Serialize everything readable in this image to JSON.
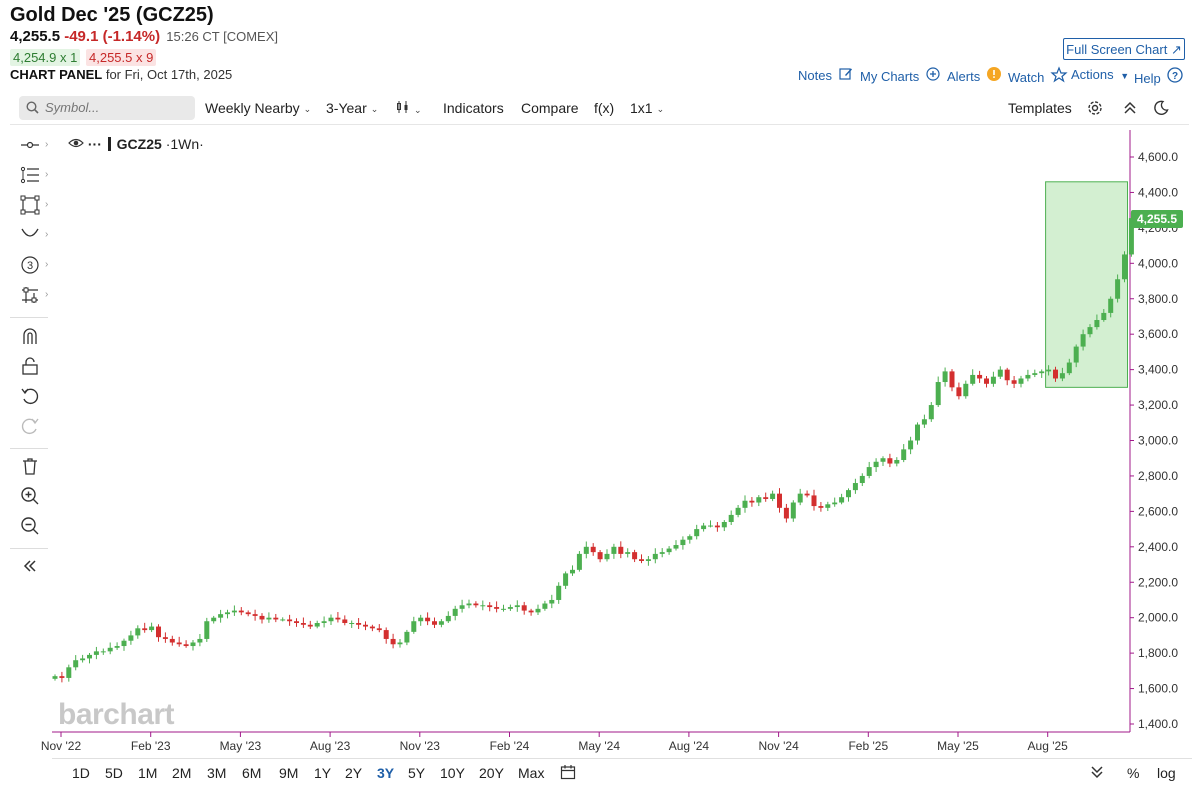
{
  "header": {
    "title": "Gold Dec '25 (GCZ25)",
    "last": "4,255.5",
    "change": "-49.1 (-1.14%)",
    "time": "15:26 CT [COMEX]",
    "bid": "4,254.9 x 1",
    "ask": "4,255.5 x 9",
    "panel_label": "CHART PANEL",
    "panel_date": "for Fri, Oct 17th, 2025",
    "fullscreen_label": "Full Screen Chart"
  },
  "top_links": {
    "notes": "Notes",
    "my_charts": "My Charts",
    "alerts": "Alerts",
    "watch": "Watch",
    "actions": "Actions",
    "help": "Help"
  },
  "toolbar": {
    "symbol_placeholder": "Symbol...",
    "interval": "Weekly Nearby",
    "period": "3-Year",
    "indicators": "Indicators",
    "compare": "Compare",
    "fx": "f(x)",
    "layout": "1x1",
    "templates": "Templates"
  },
  "legend": {
    "symbol": "GCZ25",
    "suffix": "·1Wn·"
  },
  "brand": "barchart",
  "timeframes": [
    "1D",
    "5D",
    "1M",
    "2M",
    "3M",
    "6M",
    "9M",
    "1Y",
    "2Y",
    "3Y",
    "5Y",
    "10Y",
    "20Y",
    "Max"
  ],
  "active_timeframe": "3Y",
  "bottom_right": {
    "percent": "%",
    "log": "log"
  },
  "colors": {
    "up": "#4caf50",
    "down": "#d32f2f",
    "accent": "#1f5fa8",
    "highlight": "#c8ebc5"
  },
  "chart_data": {
    "type": "candlestick",
    "interval": "weekly",
    "ylim": [
      1400,
      4700
    ],
    "y_ticks": [
      "4,600.0",
      "4,400.0",
      "4,200.0",
      "4,000.0",
      "3,800.0",
      "3,600.0",
      "3,400.0",
      "3,200.0",
      "3,000.0",
      "2,800.0",
      "2,600.0",
      "2,400.0",
      "2,200.0",
      "2,000.0",
      "1,800.0",
      "1,600.0",
      "1,400.0"
    ],
    "y_tick_values": [
      4600,
      4400,
      4200,
      4000,
      3800,
      3600,
      3400,
      3200,
      3000,
      2800,
      2600,
      2400,
      2200,
      2000,
      1800,
      1600,
      1400
    ],
    "x_ticks": [
      "Nov '22",
      "Feb '23",
      "May '23",
      "Aug '23",
      "Nov '23",
      "Feb '24",
      "May '24",
      "Aug '24",
      "Nov '24",
      "Feb '25",
      "May '25",
      "Aug '25"
    ],
    "last_price": "4,255.5",
    "highlight_range": {
      "from_week": 144,
      "to_week": 155,
      "low": 3300,
      "high": 4460
    },
    "closes": [
      1670,
      1660,
      1720,
      1760,
      1770,
      1790,
      1810,
      1810,
      1830,
      1840,
      1870,
      1900,
      1940,
      1930,
      1950,
      1890,
      1880,
      1860,
      1850,
      1840,
      1860,
      1880,
      1980,
      2000,
      2020,
      2030,
      2040,
      2030,
      2020,
      2010,
      1990,
      2000,
      1990,
      1990,
      1980,
      1970,
      1960,
      1950,
      1970,
      1980,
      2000,
      1990,
      1970,
      1970,
      1960,
      1950,
      1940,
      1930,
      1880,
      1850,
      1860,
      1920,
      1980,
      2000,
      1980,
      1960,
      1980,
      2010,
      2050,
      2070,
      2080,
      2070,
      2070,
      2060,
      2050,
      2050,
      2060,
      2070,
      2040,
      2030,
      2050,
      2080,
      2100,
      2180,
      2250,
      2270,
      2360,
      2400,
      2370,
      2330,
      2360,
      2400,
      2360,
      2370,
      2330,
      2320,
      2330,
      2360,
      2370,
      2390,
      2410,
      2440,
      2460,
      2500,
      2520,
      2520,
      2510,
      2540,
      2580,
      2620,
      2660,
      2650,
      2680,
      2670,
      2700,
      2620,
      2560,
      2650,
      2700,
      2690,
      2630,
      2620,
      2640,
      2650,
      2680,
      2720,
      2760,
      2800,
      2850,
      2880,
      2900,
      2870,
      2890,
      2950,
      3000,
      3090,
      3120,
      3200,
      3330,
      3390,
      3300,
      3250,
      3320,
      3370,
      3350,
      3320,
      3360,
      3400,
      3340,
      3320,
      3350,
      3370,
      3380,
      3390,
      3400,
      3350,
      3380,
      3440,
      3530,
      3600,
      3640,
      3680,
      3720,
      3800,
      3910,
      4050,
      4255
    ]
  }
}
